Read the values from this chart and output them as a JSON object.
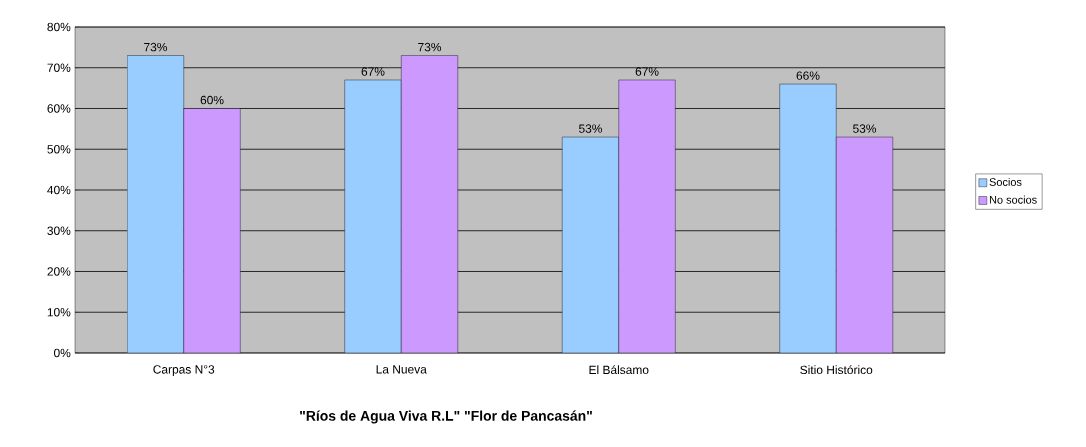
{
  "chart_data": {
    "type": "bar",
    "xlabel": "\"Ríos de Agua Viva R.L\"   \"Flor de Pancasán\"",
    "categories": [
      "Carpas N°3",
      "La Nueva",
      "El Bálsamo",
      "Sitio Histórico"
    ],
    "series": [
      {
        "name": "Socios",
        "color": "#99ccff",
        "values": [
          73,
          67,
          53,
          66
        ],
        "value_labels": [
          "73%",
          "67%",
          "53%",
          "66%"
        ]
      },
      {
        "name": "No socios",
        "color": "#cc99ff",
        "values": [
          60,
          73,
          67,
          53
        ],
        "value_labels": [
          "60%",
          "73%",
          "67%",
          "53%"
        ]
      }
    ],
    "ylim": [
      0,
      80
    ],
    "yticks": [
      {
        "value": 0,
        "label": "0%"
      },
      {
        "value": 10,
        "label": "10%"
      },
      {
        "value": 20,
        "label": "20%"
      },
      {
        "value": 30,
        "label": "30%"
      },
      {
        "value": 40,
        "label": "40%"
      },
      {
        "value": 50,
        "label": "50%"
      },
      {
        "value": 60,
        "label": "60%"
      },
      {
        "value": 70,
        "label": "70%"
      },
      {
        "value": 80,
        "label": "80%"
      }
    ],
    "grid": "y",
    "legend": "right"
  }
}
